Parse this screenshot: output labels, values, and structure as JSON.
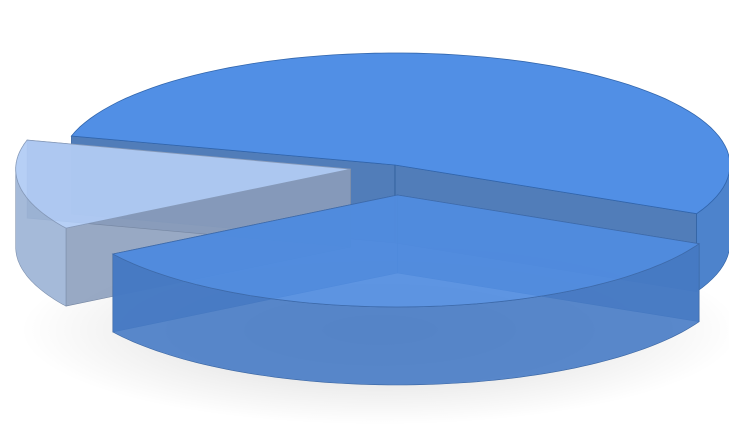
{
  "chart_data": {
    "type": "pie",
    "values": [
      53,
      34,
      13
    ],
    "colors": [
      "#3f80d8",
      "#4d86d6",
      "#a8c1e8"
    ]
  }
}
